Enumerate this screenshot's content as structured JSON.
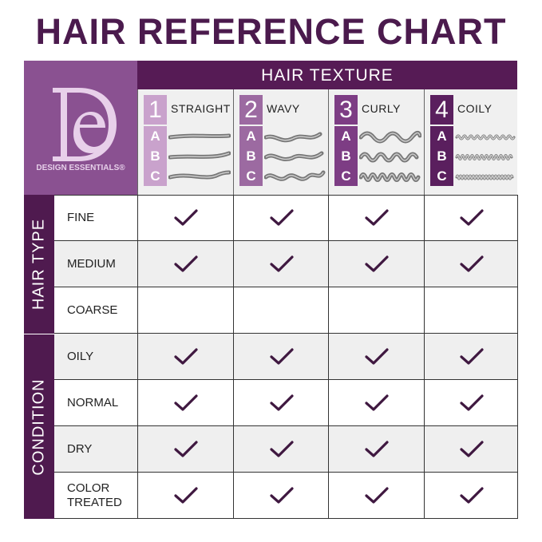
{
  "title": "HAIR REFERENCE CHART",
  "logo": {
    "brand": "DESIGN ESSENTIALS®",
    "monogram": "DE"
  },
  "texture_header": "HAIR TEXTURE",
  "textures": [
    {
      "number": "1",
      "label": "STRAIGHT",
      "color": "#c9a2cc",
      "subtypes": [
        "A",
        "B",
        "C"
      ]
    },
    {
      "number": "2",
      "label": "WAVY",
      "color": "#9c6aa1",
      "subtypes": [
        "A",
        "B",
        "C"
      ]
    },
    {
      "number": "3",
      "label": "CURLY",
      "color": "#7d3d84",
      "subtypes": [
        "A",
        "B",
        "C"
      ]
    },
    {
      "number": "4",
      "label": "COILY",
      "color": "#5a1f5e",
      "subtypes": [
        "A",
        "B",
        "C"
      ]
    }
  ],
  "sections": [
    {
      "label": "HAIR TYPE"
    },
    {
      "label": "CONDITION"
    }
  ],
  "rows": [
    {
      "label": "FINE",
      "checks": [
        true,
        true,
        true,
        true
      ]
    },
    {
      "label": "MEDIUM",
      "checks": [
        true,
        true,
        true,
        true
      ]
    },
    {
      "label": "COARSE",
      "checks": [
        false,
        false,
        false,
        false
      ]
    },
    {
      "label": "OILY",
      "checks": [
        true,
        true,
        true,
        true
      ]
    },
    {
      "label": "NORMAL",
      "checks": [
        true,
        true,
        true,
        true
      ]
    },
    {
      "label": "DRY",
      "checks": [
        true,
        true,
        true,
        true
      ]
    },
    {
      "label": "COLOR TREATED",
      "checks": [
        true,
        true,
        true,
        true
      ]
    }
  ],
  "colors": {
    "title": "#4b1a4d",
    "header": "#561b55",
    "sidebar": "#4f1a4f",
    "logo_panel": "#8a5191",
    "check": "#3f1840"
  }
}
